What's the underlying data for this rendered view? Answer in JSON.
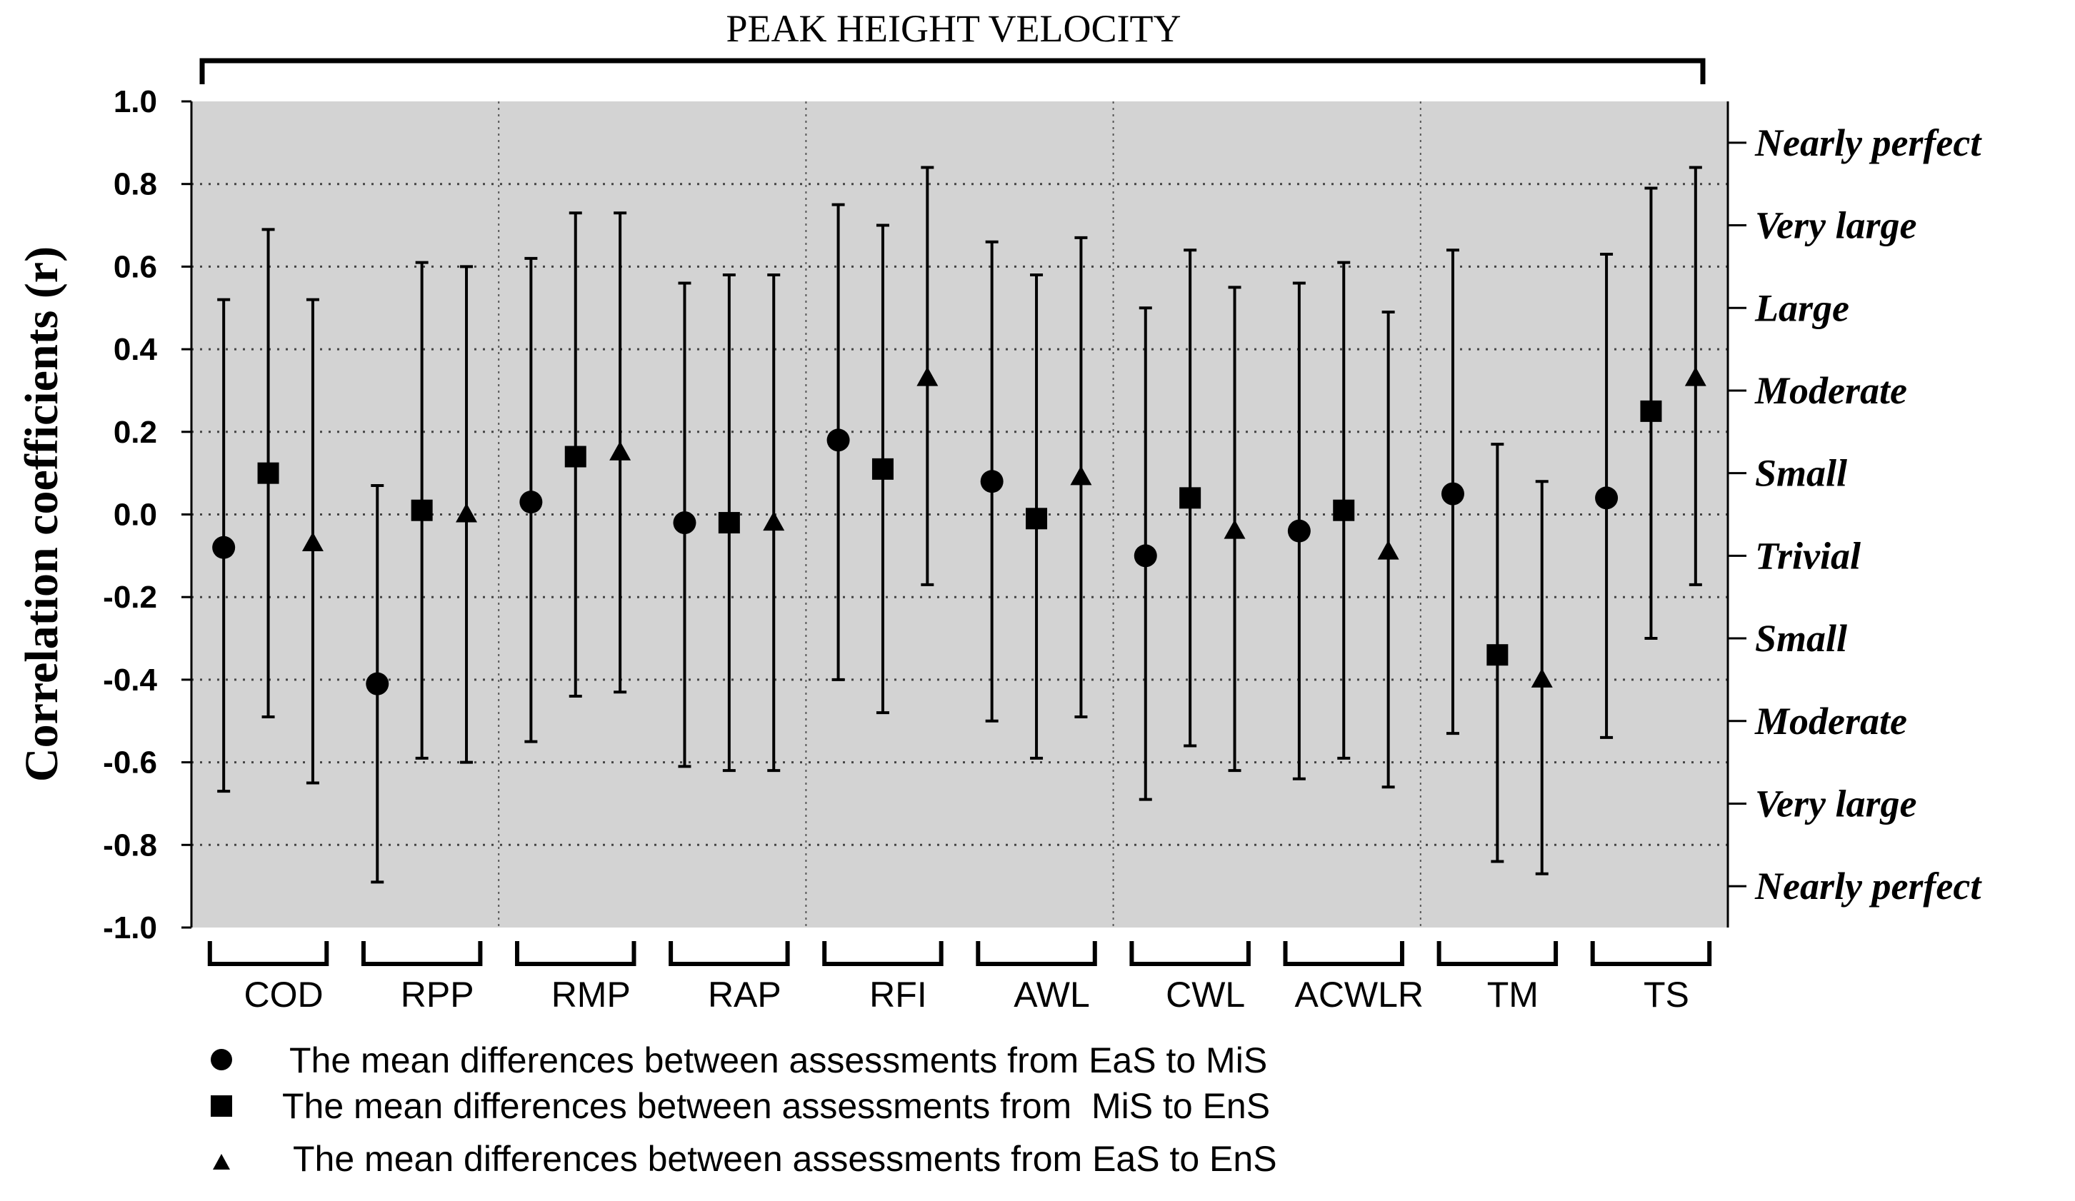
{
  "chart_data": {
    "type": "scatter",
    "title": "PEAK HEIGHT VELOCITY",
    "ylabel": "Correlation coefficients (r)",
    "ylim": [
      -1.0,
      1.0
    ],
    "yticks": [
      "1.0",
      "0.8",
      "0.6",
      "0.4",
      "0.2",
      "0.0",
      "-0.2",
      "-0.4",
      "-0.6",
      "-0.8",
      "-1.0"
    ],
    "ytick_values": [
      1.0,
      0.8,
      0.6,
      0.4,
      0.2,
      0.0,
      -0.2,
      -0.4,
      -0.6,
      -0.8,
      -1.0
    ],
    "grid": "horizontal dotted",
    "right_axis": {
      "labels": [
        "Nearly perfect",
        "Very large",
        "Large",
        "Moderate",
        "Small",
        "Trivial",
        "Small",
        "Moderate",
        "Very large",
        "Nearly perfect"
      ],
      "positions": [
        0.9,
        0.7,
        0.5,
        0.3,
        0.1,
        -0.1,
        -0.3,
        -0.5,
        -0.7,
        -0.9
      ]
    },
    "categories": [
      "COD",
      "RPP",
      "RMP",
      "RAP",
      "RFI",
      "AWL",
      "CWL",
      "ACWLR",
      "TM",
      "TS"
    ],
    "groups_with_separator_after": [
      1,
      3,
      5,
      7
    ],
    "series": [
      {
        "name": "The mean differences between assessments from EaS to MiS",
        "marker": "circle",
        "values": [
          -0.08,
          -0.41,
          0.03,
          -0.02,
          0.18,
          0.08,
          -0.1,
          -0.04,
          0.05,
          0.04
        ],
        "upper": [
          0.52,
          0.07,
          0.62,
          0.56,
          0.75,
          0.66,
          0.5,
          0.56,
          0.64,
          0.63
        ],
        "lower": [
          -0.67,
          -0.89,
          -0.55,
          -0.61,
          -0.4,
          -0.5,
          -0.69,
          -0.64,
          -0.53,
          -0.54
        ]
      },
      {
        "name": "The mean differences between assessments from  MiS to EnS",
        "marker": "square",
        "values": [
          0.1,
          0.01,
          0.14,
          -0.02,
          0.11,
          -0.01,
          0.04,
          0.01,
          -0.34,
          0.25
        ],
        "upper": [
          0.69,
          0.61,
          0.73,
          0.58,
          0.7,
          0.58,
          0.64,
          0.61,
          0.17,
          0.79
        ],
        "lower": [
          -0.49,
          -0.59,
          -0.44,
          -0.62,
          -0.48,
          -0.59,
          -0.56,
          -0.59,
          -0.84,
          -0.3
        ]
      },
      {
        "name": "The mean differences between assessments from EaS to EnS",
        "marker": "triangle",
        "values": [
          -0.07,
          0.0,
          0.15,
          -0.02,
          0.33,
          0.09,
          -0.04,
          -0.09,
          -0.4,
          0.33
        ],
        "upper": [
          0.52,
          0.6,
          0.73,
          0.58,
          0.84,
          0.67,
          0.55,
          0.49,
          0.08,
          0.84
        ],
        "lower": [
          -0.65,
          -0.6,
          -0.43,
          -0.62,
          -0.17,
          -0.49,
          -0.62,
          -0.66,
          -0.87,
          -0.17
        ]
      }
    ]
  }
}
